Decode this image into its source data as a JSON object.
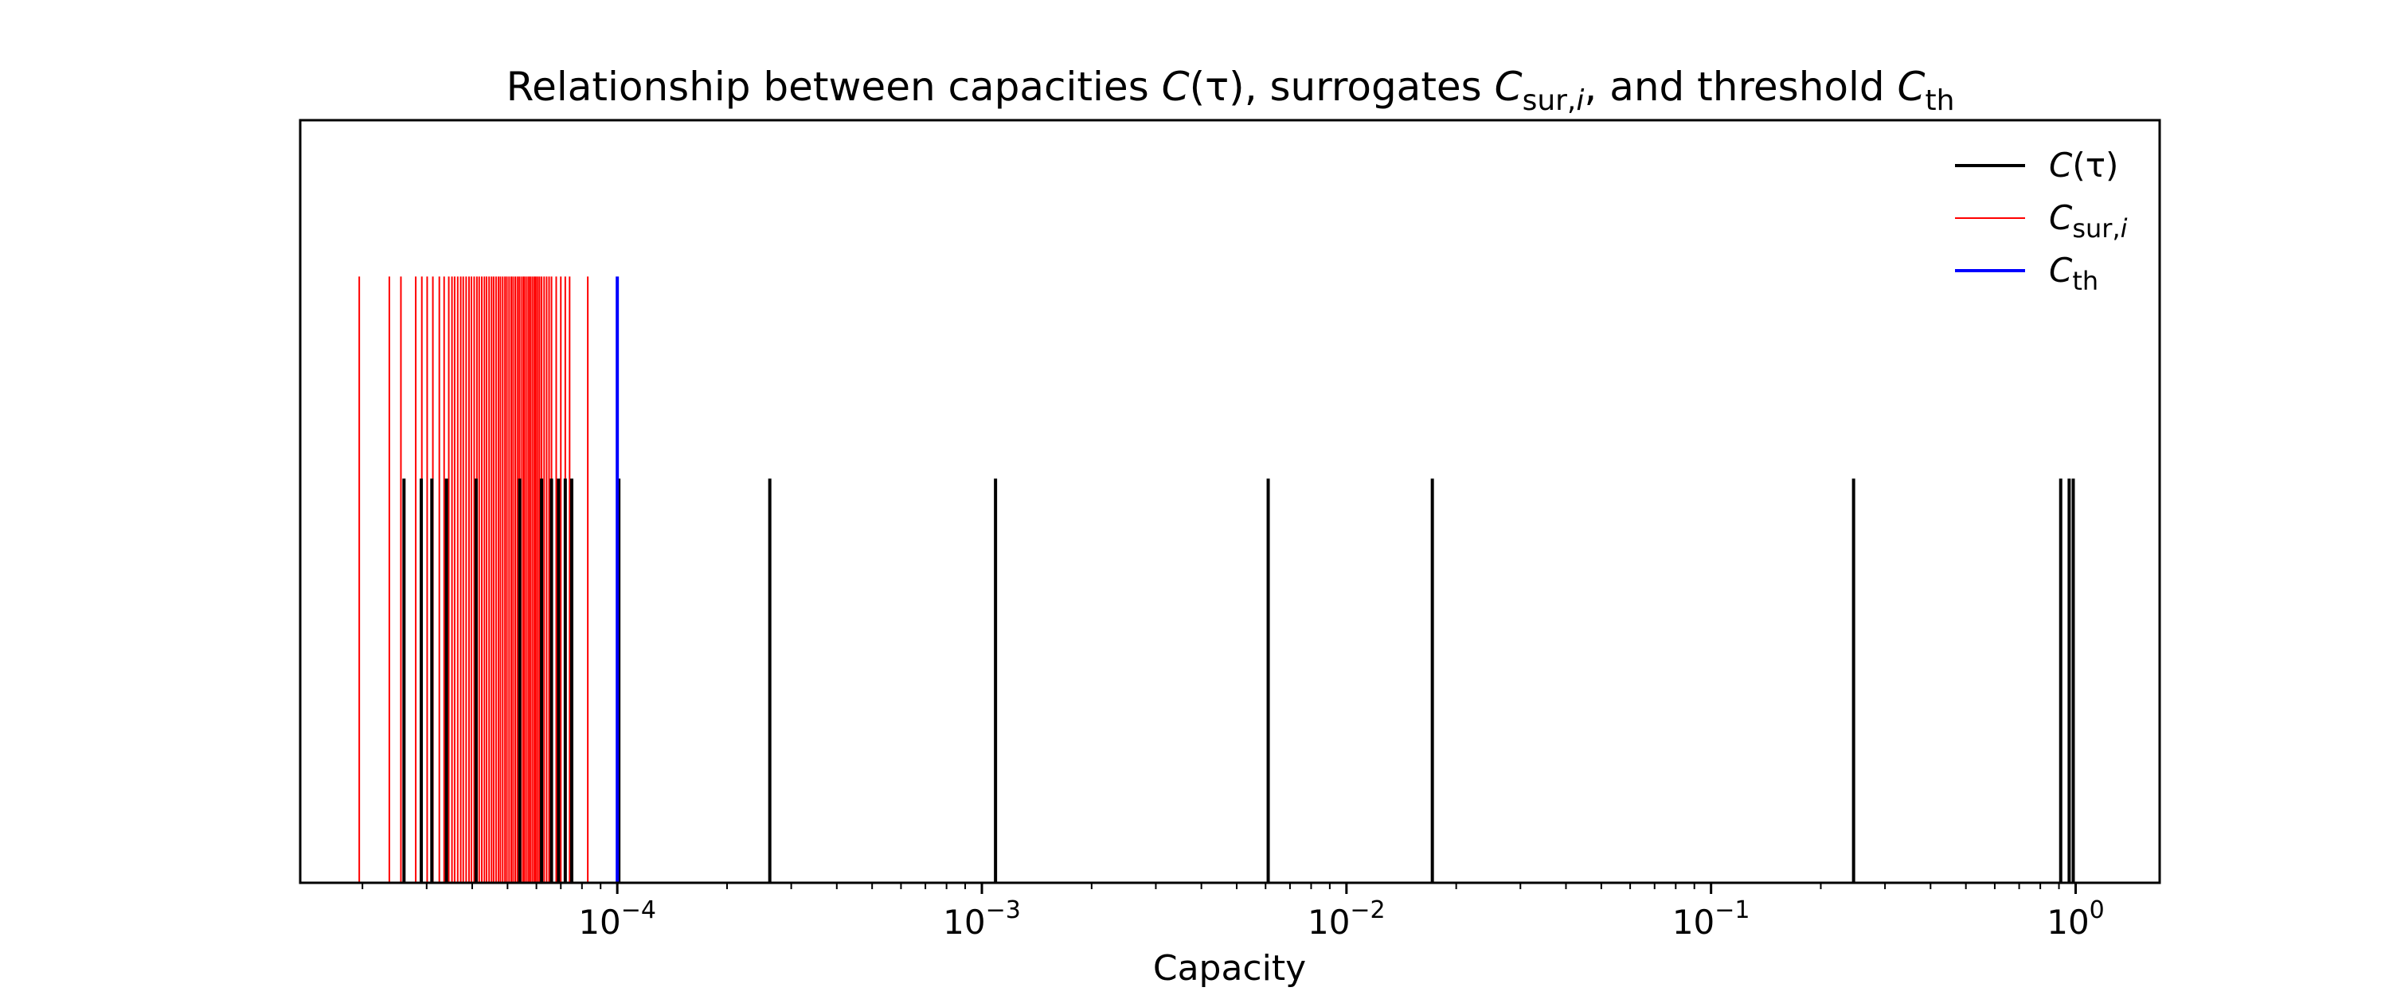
{
  "chart_data": {
    "type": "event-plot",
    "title": {
      "prefix": "Relationship between capacities ",
      "c_tau_base": "C",
      "c_tau_arg": "(τ)",
      "middle": ", surrogates ",
      "c_sur_base": "C",
      "c_sur_sub": "sur,",
      "c_sur_sub_i": "i",
      "between": ", and threshold ",
      "c_th_base": "C",
      "c_th_sub": "th"
    },
    "xlabel": "Capacity",
    "ylabel": "",
    "x_scale": "log",
    "xlim": [
      1.35e-05,
      1.7
    ],
    "y_axis_visible": false,
    "grid": false,
    "legend_position": "upper right",
    "x_ticks": [
      {
        "value": 0.0001,
        "base": "10",
        "exp": "−4"
      },
      {
        "value": 0.001,
        "base": "10",
        "exp": "−3"
      },
      {
        "value": 0.01,
        "base": "10",
        "exp": "−2"
      },
      {
        "value": 0.1,
        "base": "10",
        "exp": "−1"
      },
      {
        "value": 1,
        "base": "10",
        "exp": "0"
      }
    ],
    "series": [
      {
        "key": "capacities",
        "legend": {
          "base": "C",
          "arg": "(τ)"
        },
        "color": "#000000",
        "line_height_fraction": 0.53,
        "values": [
          2.6e-05,
          2.9e-05,
          3.1e-05,
          3.4e-05,
          4.1e-05,
          5.4e-05,
          6.2e-05,
          6.6e-05,
          6.9e-05,
          7.2e-05,
          7.5e-05,
          0.000101,
          0.000262,
          0.00109,
          0.0061,
          0.0172,
          0.246,
          0.91,
          0.96,
          0.985
        ]
      },
      {
        "key": "surrogates",
        "legend": {
          "base": "C",
          "sub": "sur,",
          "sub_i": "i"
        },
        "color": "#ff0000",
        "line_height_fraction": 0.795,
        "values": [
          1.96e-05,
          2.37e-05,
          2.55e-05,
          2.8e-05,
          2.91e-05,
          3.01e-05,
          3.12e-05,
          3.25e-05,
          3.35e-05,
          3.45e-05,
          3.52e-05,
          3.58e-05,
          3.65e-05,
          3.72e-05,
          3.78e-05,
          3.85e-05,
          3.92e-05,
          3.98e-05,
          4.05e-05,
          4.12e-05,
          4.18e-05,
          4.25e-05,
          4.32e-05,
          4.38e-05,
          4.45e-05,
          4.52e-05,
          4.58e-05,
          4.65e-05,
          4.72e-05,
          4.78e-05,
          4.85e-05,
          4.92e-05,
          4.98e-05,
          5.05e-05,
          5.12e-05,
          5.18e-05,
          5.25e-05,
          5.32e-05,
          5.38e-05,
          5.45e-05,
          5.52e-05,
          5.58e-05,
          5.65e-05,
          5.72e-05,
          5.78e-05,
          5.85e-05,
          5.92e-05,
          5.98e-05,
          6.05e-05,
          6.12e-05,
          6.2e-05,
          6.3e-05,
          6.4e-05,
          6.5e-05,
          6.6e-05,
          6.8e-05,
          7e-05,
          7.2e-05,
          7.4e-05,
          8.3e-05
        ]
      },
      {
        "key": "threshold",
        "legend": {
          "base": "C",
          "sub": "th"
        },
        "color": "#0000ff",
        "line_height_fraction": 0.795,
        "values": [
          0.0001
        ]
      }
    ]
  }
}
